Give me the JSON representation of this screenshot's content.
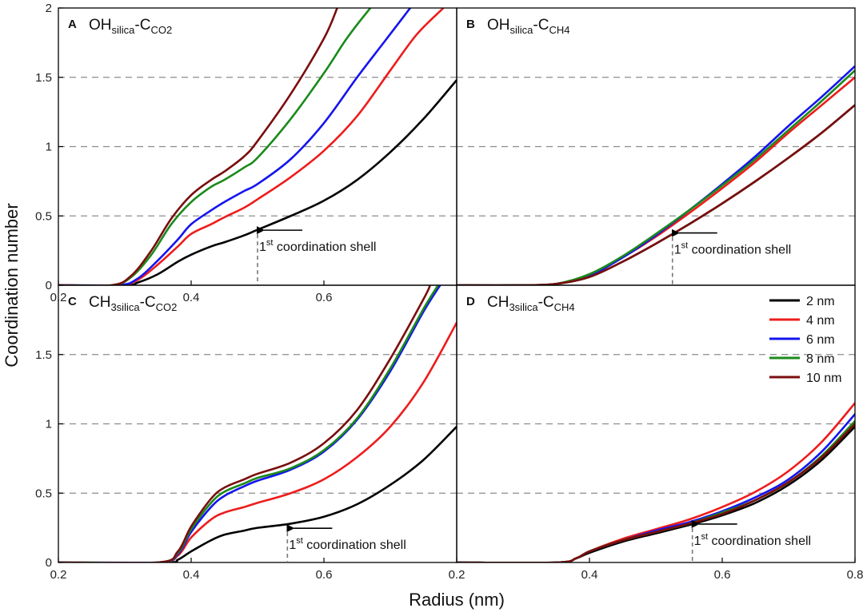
{
  "figure": {
    "xlabel": "Radius (nm)",
    "ylabel": "Coordination number"
  },
  "legend": {
    "entries": [
      {
        "label": "2 nm",
        "color": "#000000"
      },
      {
        "label": "4 nm",
        "color": "#ee1c1c"
      },
      {
        "label": "6 nm",
        "color": "#1414f0"
      },
      {
        "label": "8 nm",
        "color": "#1a8a1a"
      },
      {
        "label": "10 nm",
        "color": "#7a0e0e"
      }
    ]
  },
  "chart_data": [
    {
      "type": "line",
      "panel": "A",
      "title_main": "OH",
      "title_sub1": "silica",
      "title_mid": "-C",
      "title_sub2": "CO2",
      "xlim": [
        0.2,
        0.8
      ],
      "ylim": [
        0,
        2
      ],
      "xticks": [
        "0.2",
        "0.4",
        "0.6"
      ],
      "yticks": [
        "0",
        "0.5",
        "1",
        "1.5",
        "2"
      ],
      "shell": {
        "x": 0.5,
        "y": 0.42,
        "label_main": "1",
        "label_sup": "st",
        "label_rest": " coordination shell"
      },
      "series": [
        {
          "name": "2 nm",
          "x": [
            0.2,
            0.3,
            0.32,
            0.35,
            0.38,
            0.4,
            0.43,
            0.45,
            0.48,
            0.5,
            0.55,
            0.6,
            0.65,
            0.7,
            0.75,
            0.8
          ],
          "y": [
            0,
            0,
            0.02,
            0.08,
            0.17,
            0.22,
            0.28,
            0.31,
            0.36,
            0.4,
            0.5,
            0.61,
            0.76,
            0.96,
            1.2,
            1.48
          ]
        },
        {
          "name": "4 nm",
          "x": [
            0.2,
            0.29,
            0.32,
            0.35,
            0.38,
            0.4,
            0.43,
            0.45,
            0.48,
            0.5,
            0.55,
            0.6,
            0.65,
            0.7,
            0.74,
            0.78
          ],
          "y": [
            0,
            0,
            0.04,
            0.15,
            0.28,
            0.37,
            0.44,
            0.49,
            0.56,
            0.62,
            0.78,
            0.97,
            1.22,
            1.55,
            1.81,
            2
          ]
        },
        {
          "name": "6 nm",
          "x": [
            0.2,
            0.29,
            0.32,
            0.35,
            0.38,
            0.4,
            0.43,
            0.45,
            0.48,
            0.5,
            0.55,
            0.6,
            0.65,
            0.69,
            0.73
          ],
          "y": [
            0,
            0,
            0.05,
            0.18,
            0.33,
            0.44,
            0.54,
            0.6,
            0.68,
            0.73,
            0.91,
            1.17,
            1.5,
            1.75,
            2
          ]
        },
        {
          "name": "8 nm",
          "x": [
            0.2,
            0.28,
            0.31,
            0.34,
            0.37,
            0.4,
            0.43,
            0.45,
            0.48,
            0.5,
            0.55,
            0.6,
            0.63,
            0.65,
            0.67
          ],
          "y": [
            0,
            0,
            0.06,
            0.22,
            0.44,
            0.6,
            0.71,
            0.76,
            0.85,
            0.92,
            1.2,
            1.53,
            1.75,
            1.88,
            2
          ]
        },
        {
          "name": "10 nm",
          "x": [
            0.2,
            0.28,
            0.31,
            0.34,
            0.37,
            0.4,
            0.43,
            0.45,
            0.48,
            0.5,
            0.55,
            0.6,
            0.62
          ],
          "y": [
            0,
            0,
            0.07,
            0.25,
            0.48,
            0.65,
            0.76,
            0.82,
            0.93,
            1.04,
            1.38,
            1.78,
            2
          ]
        }
      ]
    },
    {
      "type": "line",
      "panel": "B",
      "title_main": "OH",
      "title_sub1": "silica",
      "title_mid": "-C",
      "title_sub2": "CH4",
      "xlim": [
        0.2,
        0.8
      ],
      "ylim": [
        0,
        2
      ],
      "xticks": [],
      "yticks": [],
      "shell": {
        "x": 0.525,
        "y": 0.4,
        "label_main": "1",
        "label_sup": "st",
        "label_rest": " coordination shell"
      },
      "series": [
        {
          "name": "2 nm",
          "x": [
            0.2,
            0.3,
            0.35,
            0.4,
            0.45,
            0.5,
            0.55,
            0.6,
            0.65,
            0.7,
            0.75,
            0.8
          ],
          "y": [
            0,
            0,
            0.01,
            0.06,
            0.17,
            0.3,
            0.44,
            0.59,
            0.75,
            0.92,
            1.1,
            1.3
          ]
        },
        {
          "name": "4 nm",
          "x": [
            0.2,
            0.3,
            0.35,
            0.4,
            0.45,
            0.5,
            0.55,
            0.6,
            0.65,
            0.7,
            0.75,
            0.8
          ],
          "y": [
            0,
            0,
            0.01,
            0.07,
            0.2,
            0.35,
            0.52,
            0.7,
            0.89,
            1.1,
            1.3,
            1.5
          ]
        },
        {
          "name": "6 nm",
          "x": [
            0.2,
            0.3,
            0.35,
            0.4,
            0.45,
            0.5,
            0.55,
            0.6,
            0.65,
            0.7,
            0.75,
            0.8
          ],
          "y": [
            0,
            0,
            0.01,
            0.07,
            0.2,
            0.36,
            0.54,
            0.73,
            0.93,
            1.15,
            1.36,
            1.58
          ]
        },
        {
          "name": "8 nm",
          "x": [
            0.2,
            0.3,
            0.35,
            0.4,
            0.45,
            0.5,
            0.55,
            0.6,
            0.65,
            0.7,
            0.75,
            0.8
          ],
          "y": [
            0,
            0,
            0.01,
            0.08,
            0.21,
            0.37,
            0.54,
            0.72,
            0.91,
            1.12,
            1.33,
            1.55
          ]
        },
        {
          "name": "10 nm",
          "x": [
            0.2,
            0.3,
            0.35,
            0.4,
            0.45,
            0.5,
            0.55,
            0.6,
            0.65,
            0.7,
            0.75,
            0.8
          ],
          "y": [
            0,
            0,
            0.01,
            0.06,
            0.17,
            0.3,
            0.44,
            0.59,
            0.75,
            0.92,
            1.1,
            1.3
          ]
        }
      ]
    },
    {
      "type": "line",
      "panel": "C",
      "title_main": "CH",
      "title_sub1": "3silica",
      "title_mid": "-C",
      "title_sub2": "CO2",
      "xlim": [
        0.2,
        0.8
      ],
      "ylim": [
        0,
        2
      ],
      "xticks": [
        "0.2",
        "0.4",
        "0.6"
      ],
      "yticks": [
        "0",
        "0.5",
        "1",
        "1.5",
        ""
      ],
      "shell": {
        "x": 0.545,
        "y": 0.27,
        "label_main": "1",
        "label_sup": "st",
        "label_rest": " coordination shell"
      },
      "series": [
        {
          "name": "2 nm",
          "x": [
            0.2,
            0.36,
            0.38,
            0.4,
            0.43,
            0.45,
            0.48,
            0.5,
            0.55,
            0.6,
            0.65,
            0.7,
            0.75,
            0.8
          ],
          "y": [
            0,
            0,
            0.02,
            0.08,
            0.16,
            0.2,
            0.23,
            0.25,
            0.28,
            0.33,
            0.42,
            0.56,
            0.74,
            0.98
          ]
        },
        {
          "name": "4 nm",
          "x": [
            0.2,
            0.35,
            0.38,
            0.4,
            0.43,
            0.45,
            0.48,
            0.5,
            0.55,
            0.6,
            0.65,
            0.7,
            0.75,
            0.8
          ],
          "y": [
            0,
            0,
            0.05,
            0.18,
            0.31,
            0.36,
            0.4,
            0.43,
            0.5,
            0.6,
            0.76,
            0.98,
            1.3,
            1.73
          ]
        },
        {
          "name": "6 nm",
          "x": [
            0.2,
            0.35,
            0.38,
            0.4,
            0.43,
            0.45,
            0.48,
            0.5,
            0.55,
            0.6,
            0.65,
            0.7,
            0.75,
            0.775
          ],
          "y": [
            0,
            0,
            0.06,
            0.22,
            0.4,
            0.48,
            0.55,
            0.59,
            0.67,
            0.8,
            1.03,
            1.38,
            1.81,
            2
          ]
        },
        {
          "name": "8 nm",
          "x": [
            0.2,
            0.35,
            0.38,
            0.4,
            0.43,
            0.45,
            0.48,
            0.5,
            0.55,
            0.6,
            0.65,
            0.7,
            0.75,
            0.772
          ],
          "y": [
            0,
            0,
            0.07,
            0.24,
            0.43,
            0.51,
            0.57,
            0.61,
            0.68,
            0.81,
            1.04,
            1.4,
            1.83,
            2
          ]
        },
        {
          "name": "10 nm",
          "x": [
            0.2,
            0.35,
            0.38,
            0.4,
            0.43,
            0.45,
            0.48,
            0.5,
            0.55,
            0.6,
            0.65,
            0.7,
            0.75,
            0.76
          ],
          "y": [
            0,
            0,
            0.08,
            0.26,
            0.46,
            0.54,
            0.6,
            0.64,
            0.72,
            0.86,
            1.1,
            1.47,
            1.9,
            2
          ]
        }
      ]
    },
    {
      "type": "line",
      "panel": "D",
      "title_main": "CH",
      "title_sub1": "3silica",
      "title_mid": "-C",
      "title_sub2": "CH4",
      "xlim": [
        0.2,
        0.8
      ],
      "ylim": [
        0,
        2
      ],
      "xticks": [
        "0.2",
        "0.4",
        "0.6",
        "0.8"
      ],
      "yticks": [],
      "shell": {
        "x": 0.555,
        "y": 0.3,
        "label_main": "1",
        "label_sup": "st",
        "label_rest": " coordination shell"
      },
      "series": [
        {
          "name": "2 nm",
          "x": [
            0.2,
            0.35,
            0.38,
            0.4,
            0.45,
            0.5,
            0.55,
            0.6,
            0.65,
            0.7,
            0.75,
            0.8
          ],
          "y": [
            0,
            0,
            0.03,
            0.07,
            0.15,
            0.21,
            0.27,
            0.34,
            0.43,
            0.56,
            0.74,
            0.98
          ]
        },
        {
          "name": "4 nm",
          "x": [
            0.2,
            0.35,
            0.38,
            0.4,
            0.45,
            0.5,
            0.55,
            0.6,
            0.65,
            0.7,
            0.75,
            0.8
          ],
          "y": [
            0,
            0,
            0.03,
            0.08,
            0.17,
            0.24,
            0.31,
            0.4,
            0.51,
            0.66,
            0.87,
            1.15
          ]
        },
        {
          "name": "6 nm",
          "x": [
            0.2,
            0.35,
            0.38,
            0.4,
            0.45,
            0.5,
            0.55,
            0.6,
            0.65,
            0.7,
            0.75,
            0.8
          ],
          "y": [
            0,
            0,
            0.03,
            0.08,
            0.16,
            0.23,
            0.29,
            0.37,
            0.47,
            0.6,
            0.8,
            1.07
          ]
        },
        {
          "name": "8 nm",
          "x": [
            0.2,
            0.35,
            0.38,
            0.4,
            0.45,
            0.5,
            0.55,
            0.6,
            0.65,
            0.7,
            0.75,
            0.8
          ],
          "y": [
            0,
            0,
            0.03,
            0.08,
            0.16,
            0.22,
            0.28,
            0.36,
            0.45,
            0.58,
            0.77,
            1.02
          ]
        },
        {
          "name": "10 nm",
          "x": [
            0.2,
            0.35,
            0.38,
            0.4,
            0.45,
            0.5,
            0.55,
            0.6,
            0.65,
            0.7,
            0.75,
            0.8
          ],
          "y": [
            0,
            0,
            0.03,
            0.08,
            0.16,
            0.22,
            0.28,
            0.35,
            0.45,
            0.58,
            0.76,
            1.0
          ]
        }
      ]
    }
  ]
}
